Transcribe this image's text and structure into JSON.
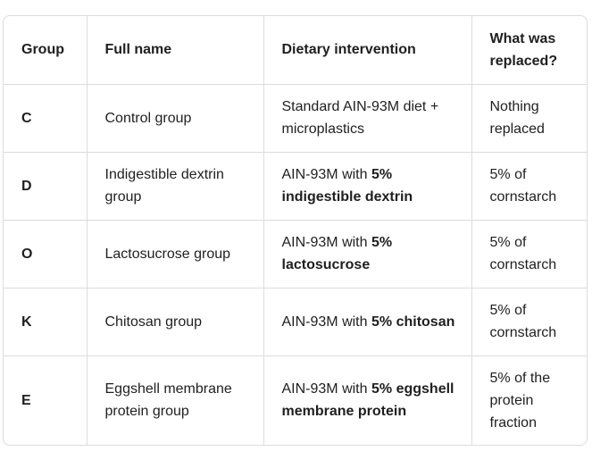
{
  "table": {
    "columns": [
      "Group",
      "Full name",
      "Dietary intervention",
      "What was replaced?"
    ],
    "rows": [
      {
        "group": "C",
        "full_name": "Control group",
        "intervention": {
          "text": "Standard AIN-93M diet + microplastics"
        },
        "replaced": "Nothing replaced"
      },
      {
        "group": "D",
        "full_name": "Indigestible dextrin group",
        "intervention": {
          "text": "AIN-93M with",
          "bold": "5% indigestible dextrin"
        },
        "replaced": "5% of cornstarch"
      },
      {
        "group": "O",
        "full_name": "Lactosucrose group",
        "intervention": {
          "text": "AIN-93M with",
          "bold": "5% lactosucrose"
        },
        "replaced": "5% of cornstarch"
      },
      {
        "group": "K",
        "full_name": "Chitosan group",
        "intervention": {
          "text": "AIN-93M with",
          "bold": "5% chitosan"
        },
        "replaced": "5% of cornstarch"
      },
      {
        "group": "E",
        "full_name": "Eggshell membrane protein group",
        "intervention": {
          "text": "AIN-93M with",
          "bold": "5% eggshell membrane protein"
        },
        "replaced": "5% of the protein fraction"
      }
    ]
  }
}
